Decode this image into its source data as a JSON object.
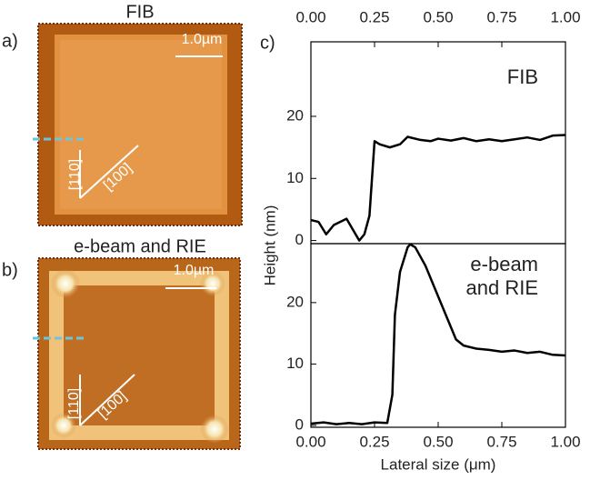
{
  "images": [
    {
      "label": "a)",
      "title": "FIB",
      "scale": "1.0µm",
      "dir1": "[110]",
      "dir2": "[100]"
    },
    {
      "label": "b)",
      "title": "e-beam and RIE",
      "scale": "1.0µm",
      "dir1": "[110]",
      "dir2": "[100]"
    }
  ],
  "panel_label": "c)",
  "chart_data": [
    {
      "type": "line",
      "annotation": [
        "FIB"
      ],
      "color": "#000000",
      "x": [
        0,
        0.03,
        0.06,
        0.09,
        0.14,
        0.19,
        0.21,
        0.23,
        0.25,
        0.27,
        0.31,
        0.35,
        0.38,
        0.43,
        0.47,
        0.5,
        0.55,
        0.6,
        0.65,
        0.7,
        0.75,
        0.8,
        0.85,
        0.9,
        0.95,
        1.0
      ],
      "values": [
        3.3,
        3,
        1,
        2.5,
        3.5,
        0,
        1,
        4,
        16,
        15.5,
        15,
        15.5,
        16.7,
        16.2,
        16,
        16.4,
        16.1,
        16.5,
        16,
        16.3,
        16,
        16.3,
        16.6,
        16.2,
        16.9,
        17
      ],
      "xlim": [
        0,
        1
      ],
      "xticks": [
        {
          "value": 0,
          "label": "0.00"
        },
        {
          "value": 0.25,
          "label": "0.25"
        },
        {
          "value": 0.5,
          "label": "0.50"
        },
        {
          "value": 0.75,
          "label": "0.75"
        },
        {
          "value": 1,
          "label": "1.00"
        }
      ],
      "ylim": [
        -0.5,
        32
      ],
      "yticks": [
        0,
        10,
        20
      ]
    },
    {
      "type": "line",
      "annotation": [
        "e-beam",
        "and RIE"
      ],
      "color": "#000000",
      "x": [
        0,
        0.05,
        0.1,
        0.15,
        0.2,
        0.25,
        0.3,
        0.32,
        0.33,
        0.35,
        0.38,
        0.39,
        0.41,
        0.45,
        0.49,
        0.53,
        0.57,
        0.6,
        0.65,
        0.7,
        0.75,
        0.8,
        0.85,
        0.9,
        0.95,
        1.0
      ],
      "values": [
        0.3,
        0.5,
        0.2,
        0.4,
        0.2,
        0.5,
        0.4,
        5,
        18,
        25,
        29,
        29.5,
        29,
        26,
        22,
        18,
        14,
        13,
        12.5,
        12.3,
        12,
        12.2,
        11.8,
        12,
        11.5,
        11.4
      ],
      "xlim": [
        0,
        1
      ],
      "xticks": [
        {
          "value": 0,
          "label": "0.00"
        },
        {
          "value": 0.25,
          "label": "0.25"
        },
        {
          "value": 0.5,
          "label": "0.50"
        },
        {
          "value": 0.75,
          "label": "0.75"
        },
        {
          "value": 1,
          "label": "1.00"
        }
      ],
      "ylim": [
        -0.3,
        29.6
      ],
      "yticks": [
        0,
        10,
        20
      ],
      "xlabel": "Lateral size (μm)",
      "ylabel": "Height (nm)"
    }
  ]
}
